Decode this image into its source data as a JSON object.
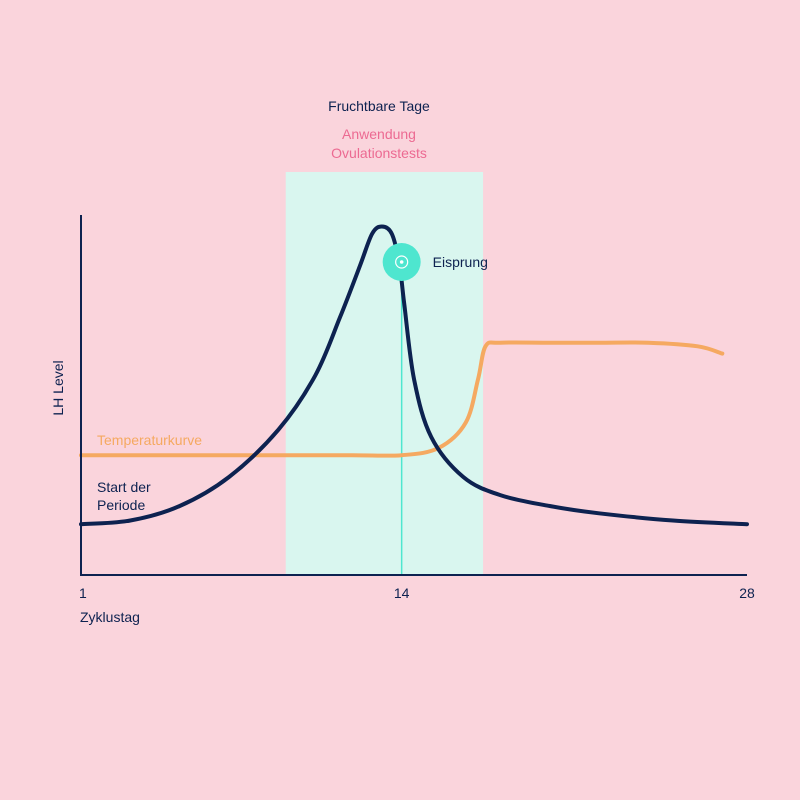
{
  "colors": {
    "background": "#fad4dc",
    "fertile_band": "#d9f6ef",
    "lh_curve": "#0d2250",
    "temperature_curve": "#f5a961",
    "ovulation_marker": "#4ee6cf",
    "test_label": "#ec6a92",
    "axis": "#0d2250"
  },
  "chart_data": {
    "type": "line",
    "xlabel": "Zyklustag",
    "ylabel": "LH Level",
    "xlim": [
      1,
      28
    ],
    "ylim": [
      0,
      100
    ],
    "x_ticks": [
      "1",
      "14",
      "28"
    ],
    "grid": false,
    "fertile_window": {
      "label": "Fruchtbare Tage",
      "sublabel": "Anwendung Ovulationstests",
      "sublabel_lines": [
        "Anwendung",
        "Ovulationstests"
      ],
      "x_start": 9.3,
      "x_end": 17.3
    },
    "ovulation": {
      "label": "Eisprung",
      "x": 14
    },
    "series": [
      {
        "name": "LH",
        "points": [
          [
            1,
            14
          ],
          [
            3,
            15
          ],
          [
            5,
            19
          ],
          [
            7,
            27
          ],
          [
            9,
            40
          ],
          [
            10.5,
            55
          ],
          [
            11.5,
            71
          ],
          [
            12.3,
            85
          ],
          [
            12.8,
            94
          ],
          [
            13.2,
            96
          ],
          [
            13.6,
            94
          ],
          [
            13.9,
            86
          ],
          [
            14.1,
            75
          ],
          [
            14.5,
            54
          ],
          [
            15.2,
            38
          ],
          [
            16.5,
            27
          ],
          [
            18,
            22
          ],
          [
            20,
            19
          ],
          [
            22,
            17
          ],
          [
            25,
            15
          ],
          [
            28,
            14
          ]
        ]
      },
      {
        "name": "Temperaturkurve",
        "points": [
          [
            1,
            33
          ],
          [
            5,
            33
          ],
          [
            9,
            33
          ],
          [
            12,
            33
          ],
          [
            14,
            33
          ],
          [
            15.5,
            35
          ],
          [
            16.6,
            42
          ],
          [
            17.1,
            54
          ],
          [
            17.4,
            63
          ],
          [
            18,
            64
          ],
          [
            20,
            64
          ],
          [
            22,
            64
          ],
          [
            24,
            64
          ],
          [
            26,
            63
          ],
          [
            27,
            61
          ]
        ]
      }
    ],
    "annotations": [
      {
        "text": "Temperaturkurve",
        "series": "Temperaturkurve"
      },
      {
        "text": "Start der Periode",
        "lines": [
          "Start der",
          "Periode"
        ],
        "series": "LH"
      }
    ]
  }
}
